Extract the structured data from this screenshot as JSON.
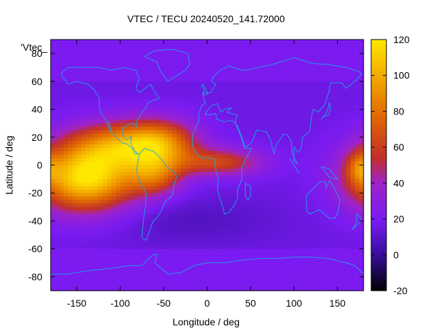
{
  "chart_data": {
    "type": "heatmap",
    "title": "VTEC / TECU 20240520_141.72000",
    "xlabel": "Longitude / deg",
    "ylabel": "Latitude / deg",
    "series_key_label": "'Vtec_",
    "xlim": [
      -180,
      180
    ],
    "ylim": [
      -90,
      90
    ],
    "x_ticks": [
      -150,
      -100,
      -50,
      0,
      50,
      100,
      150
    ],
    "y_ticks": [
      -80,
      -60,
      -40,
      -20,
      0,
      20,
      40,
      60,
      80
    ],
    "colorbar": {
      "range": [
        -20,
        120
      ],
      "ticks": [
        -20,
        0,
        20,
        40,
        60,
        80,
        100,
        120
      ],
      "palette": [
        "#000000",
        "#3a0fa0",
        "#7a1bf2",
        "#9f23c8",
        "#c2302a",
        "#e26a00",
        "#f2a400",
        "#ffe800"
      ]
    },
    "grid_resolution_deg": {
      "lon": 5,
      "lat": 2.5
    },
    "base_value": 16,
    "peaks": [
      {
        "lon": -140,
        "lat": -10,
        "amplitude": 100,
        "sigma_lon": 40,
        "sigma_lat": 16
      },
      {
        "lon": -100,
        "lat": 14,
        "amplitude": 60,
        "sigma_lon": 45,
        "sigma_lat": 12
      },
      {
        "lon": -55,
        "lat": 15,
        "amplitude": 55,
        "sigma_lon": 30,
        "sigma_lat": 12
      },
      {
        "lon": -60,
        "lat": -8,
        "amplitude": 45,
        "sigma_lon": 22,
        "sigma_lat": 10
      },
      {
        "lon": 15,
        "lat": 2,
        "amplitude": 45,
        "sigma_lon": 35,
        "sigma_lat": 7
      },
      {
        "lon": 175,
        "lat": -2,
        "amplitude": 30,
        "sigma_lon": 10,
        "sigma_lat": 8
      }
    ],
    "troughs": [
      {
        "lon": -20,
        "lat": -40,
        "amplitude": 8,
        "sigma_lon": 70,
        "sigma_lat": 12
      }
    ],
    "coastline_color": "#1aa6e8"
  }
}
